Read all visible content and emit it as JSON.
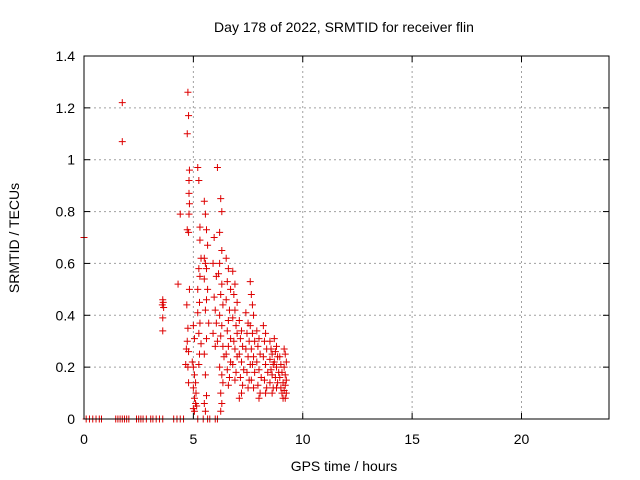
{
  "chart_data": {
    "type": "scatter",
    "title": "Day 178 of 2022, SRMTID for receiver flin",
    "xlabel": "GPS time / hours",
    "ylabel": "SRMTID / TECUs",
    "xlim": [
      0,
      24
    ],
    "ylim": [
      0,
      1.4
    ],
    "xticks": [
      0,
      5,
      10,
      15,
      20
    ],
    "yticks": [
      0,
      0.2,
      0.4,
      0.6,
      0.8,
      1,
      1.2,
      1.4
    ],
    "xtick_labels": [
      "0",
      "5",
      "10",
      "15",
      "20"
    ],
    "ytick_labels": [
      "0",
      "0.2",
      "0.4",
      "0.6",
      "0.8",
      "1",
      "1.2",
      "1.4"
    ],
    "grid": true,
    "marker": "+",
    "color": "#dd0000",
    "series": [
      {
        "name": "SRMTID",
        "points": [
          [
            0.0,
            0.7
          ],
          [
            0.1,
            0.0
          ],
          [
            0.25,
            0.0
          ],
          [
            0.4,
            0.0
          ],
          [
            0.55,
            0.0
          ],
          [
            0.7,
            0.0
          ],
          [
            0.8,
            0.0
          ],
          [
            1.45,
            0.0
          ],
          [
            1.55,
            0.0
          ],
          [
            1.65,
            0.0
          ],
          [
            1.75,
            0.0
          ],
          [
            1.85,
            0.0
          ],
          [
            1.95,
            0.0
          ],
          [
            2.05,
            0.0
          ],
          [
            2.4,
            0.0
          ],
          [
            2.5,
            0.0
          ],
          [
            2.6,
            0.0
          ],
          [
            2.7,
            0.0
          ],
          [
            2.85,
            0.0
          ],
          [
            3.05,
            0.0
          ],
          [
            3.15,
            0.0
          ],
          [
            3.3,
            0.0
          ],
          [
            3.45,
            0.0
          ],
          [
            3.6,
            0.0
          ],
          [
            4.1,
            0.0
          ],
          [
            4.25,
            0.0
          ],
          [
            4.4,
            0.0
          ],
          [
            4.55,
            0.0
          ],
          [
            5.2,
            0.0
          ],
          [
            5.45,
            0.0
          ],
          [
            5.65,
            0.0
          ],
          [
            5.75,
            0.0
          ],
          [
            6.0,
            0.0
          ],
          [
            6.1,
            0.0
          ],
          [
            1.75,
            1.22
          ],
          [
            1.75,
            1.07
          ],
          [
            3.6,
            0.46
          ],
          [
            3.62,
            0.45
          ],
          [
            3.58,
            0.44
          ],
          [
            3.64,
            0.43
          ],
          [
            3.6,
            0.39
          ],
          [
            3.6,
            0.34
          ],
          [
            4.3,
            0.52
          ],
          [
            4.4,
            0.79
          ],
          [
            4.75,
            1.26
          ],
          [
            4.78,
            1.17
          ],
          [
            4.72,
            1.1
          ],
          [
            4.82,
            0.96
          ],
          [
            4.8,
            0.92
          ],
          [
            4.8,
            0.87
          ],
          [
            4.82,
            0.83
          ],
          [
            4.8,
            0.79
          ],
          [
            4.78,
            0.72
          ],
          [
            4.72,
            0.73
          ],
          [
            4.82,
            0.5
          ],
          [
            4.7,
            0.44
          ],
          [
            4.75,
            0.35
          ],
          [
            4.72,
            0.3
          ],
          [
            4.68,
            0.27
          ],
          [
            4.78,
            0.26
          ],
          [
            4.65,
            0.21
          ],
          [
            4.75,
            0.2
          ],
          [
            4.78,
            0.14
          ],
          [
            5.0,
            0.36
          ],
          [
            5.05,
            0.31
          ],
          [
            4.95,
            0.22
          ],
          [
            5.0,
            0.2
          ],
          [
            5.05,
            0.17
          ],
          [
            5.1,
            0.14
          ],
          [
            5.0,
            0.12
          ],
          [
            5.12,
            0.1
          ],
          [
            5.05,
            0.08
          ],
          [
            5.1,
            0.06
          ],
          [
            5.15,
            0.05
          ],
          [
            5.0,
            0.04
          ],
          [
            5.05,
            0.03
          ],
          [
            5.2,
            0.97
          ],
          [
            5.25,
            0.92
          ],
          [
            5.3,
            0.74
          ],
          [
            5.3,
            0.69
          ],
          [
            5.35,
            0.62
          ],
          [
            5.25,
            0.58
          ],
          [
            5.3,
            0.55
          ],
          [
            5.2,
            0.5
          ],
          [
            5.28,
            0.45
          ],
          [
            5.2,
            0.41
          ],
          [
            5.3,
            0.37
          ],
          [
            5.25,
            0.33
          ],
          [
            5.35,
            0.29
          ],
          [
            5.28,
            0.25
          ],
          [
            5.25,
            0.21
          ],
          [
            5.5,
            0.84
          ],
          [
            5.55,
            0.79
          ],
          [
            5.6,
            0.73
          ],
          [
            5.65,
            0.67
          ],
          [
            5.5,
            0.62
          ],
          [
            5.55,
            0.6
          ],
          [
            5.6,
            0.58
          ],
          [
            5.5,
            0.54
          ],
          [
            5.65,
            0.5
          ],
          [
            5.6,
            0.46
          ],
          [
            5.55,
            0.42
          ],
          [
            5.7,
            0.37
          ],
          [
            5.6,
            0.31
          ],
          [
            5.5,
            0.25
          ],
          [
            5.55,
            0.17
          ],
          [
            5.6,
            0.09
          ],
          [
            5.5,
            0.06
          ],
          [
            5.55,
            0.03
          ],
          [
            6.1,
            0.97
          ],
          [
            5.95,
            0.7
          ],
          [
            5.9,
            0.6
          ],
          [
            6.05,
            0.55
          ],
          [
            5.95,
            0.47
          ],
          [
            6.0,
            0.42
          ],
          [
            6.05,
            0.37
          ],
          [
            5.9,
            0.33
          ],
          [
            6.1,
            0.3
          ],
          [
            6.0,
            0.28
          ],
          [
            6.25,
            0.85
          ],
          [
            6.3,
            0.8
          ],
          [
            6.2,
            0.72
          ],
          [
            6.3,
            0.65
          ],
          [
            6.2,
            0.6
          ],
          [
            6.15,
            0.56
          ],
          [
            6.3,
            0.52
          ],
          [
            6.25,
            0.48
          ],
          [
            6.35,
            0.44
          ],
          [
            6.2,
            0.4
          ],
          [
            6.3,
            0.36
          ],
          [
            6.25,
            0.32
          ],
          [
            6.35,
            0.28
          ],
          [
            6.4,
            0.24
          ],
          [
            6.2,
            0.2
          ],
          [
            6.3,
            0.17
          ],
          [
            6.35,
            0.14
          ],
          [
            6.25,
            0.1
          ],
          [
            6.3,
            0.06
          ],
          [
            6.25,
            0.03
          ],
          [
            6.5,
            0.62
          ],
          [
            6.6,
            0.58
          ],
          [
            6.55,
            0.53
          ],
          [
            6.7,
            0.5
          ],
          [
            6.5,
            0.46
          ],
          [
            6.65,
            0.42
          ],
          [
            6.6,
            0.38
          ],
          [
            6.55,
            0.34
          ],
          [
            6.7,
            0.31
          ],
          [
            6.6,
            0.28
          ],
          [
            6.5,
            0.25
          ],
          [
            6.7,
            0.22
          ],
          [
            6.55,
            0.19
          ],
          [
            6.65,
            0.16
          ],
          [
            6.6,
            0.13
          ],
          [
            6.8,
            0.57
          ],
          [
            6.9,
            0.52
          ],
          [
            6.85,
            0.48
          ],
          [
            7.0,
            0.45
          ],
          [
            6.9,
            0.42
          ],
          [
            6.8,
            0.39
          ],
          [
            6.95,
            0.36
          ],
          [
            7.0,
            0.33
          ],
          [
            6.85,
            0.3
          ],
          [
            6.9,
            0.27
          ],
          [
            7.0,
            0.24
          ],
          [
            6.8,
            0.21
          ],
          [
            6.95,
            0.18
          ],
          [
            6.9,
            0.15
          ],
          [
            7.1,
            0.38
          ],
          [
            7.2,
            0.34
          ],
          [
            7.15,
            0.31
          ],
          [
            7.25,
            0.28
          ],
          [
            7.1,
            0.25
          ],
          [
            7.2,
            0.22
          ],
          [
            7.3,
            0.19
          ],
          [
            7.15,
            0.16
          ],
          [
            7.25,
            0.13
          ],
          [
            7.2,
            0.1
          ],
          [
            7.1,
            0.08
          ],
          [
            7.4,
            0.41
          ],
          [
            7.5,
            0.37
          ],
          [
            7.45,
            0.33
          ],
          [
            7.55,
            0.3
          ],
          [
            7.4,
            0.27
          ],
          [
            7.5,
            0.24
          ],
          [
            7.6,
            0.21
          ],
          [
            7.45,
            0.18
          ],
          [
            7.55,
            0.15
          ],
          [
            7.5,
            0.12
          ],
          [
            7.6,
            0.53
          ],
          [
            7.65,
            0.48
          ],
          [
            7.7,
            0.44
          ],
          [
            7.75,
            0.4
          ],
          [
            7.6,
            0.36
          ],
          [
            7.7,
            0.33
          ],
          [
            7.8,
            0.3
          ],
          [
            7.65,
            0.27
          ],
          [
            7.75,
            0.24
          ],
          [
            7.7,
            0.21
          ],
          [
            7.8,
            0.18
          ],
          [
            7.65,
            0.15
          ],
          [
            7.75,
            0.12
          ],
          [
            7.9,
            0.34
          ],
          [
            8.0,
            0.31
          ],
          [
            7.95,
            0.28
          ],
          [
            8.05,
            0.25
          ],
          [
            7.9,
            0.22
          ],
          [
            8.0,
            0.19
          ],
          [
            8.1,
            0.16
          ],
          [
            7.95,
            0.13
          ],
          [
            8.05,
            0.1
          ],
          [
            8.0,
            0.08
          ],
          [
            8.2,
            0.36
          ],
          [
            8.3,
            0.33
          ],
          [
            8.25,
            0.3
          ],
          [
            8.35,
            0.27
          ],
          [
            8.2,
            0.24
          ],
          [
            8.3,
            0.21
          ],
          [
            8.4,
            0.18
          ],
          [
            8.25,
            0.15
          ],
          [
            8.35,
            0.12
          ],
          [
            8.3,
            0.1
          ],
          [
            8.5,
            0.3
          ],
          [
            8.55,
            0.27
          ],
          [
            8.6,
            0.25
          ],
          [
            8.5,
            0.23
          ],
          [
            8.65,
            0.21
          ],
          [
            8.55,
            0.19
          ],
          [
            8.6,
            0.17
          ],
          [
            8.5,
            0.14
          ],
          [
            8.65,
            0.12
          ],
          [
            8.6,
            0.1
          ],
          [
            8.7,
            0.31
          ],
          [
            8.8,
            0.28
          ],
          [
            8.75,
            0.26
          ],
          [
            8.85,
            0.24
          ],
          [
            8.7,
            0.22
          ],
          [
            8.8,
            0.2
          ],
          [
            8.9,
            0.18
          ],
          [
            8.75,
            0.16
          ],
          [
            8.85,
            0.14
          ],
          [
            8.8,
            0.12
          ],
          [
            8.95,
            0.24
          ],
          [
            9.0,
            0.21
          ],
          [
            9.05,
            0.18
          ],
          [
            8.95,
            0.16
          ],
          [
            9.1,
            0.14
          ],
          [
            9.0,
            0.12
          ],
          [
            9.05,
            0.1
          ],
          [
            9.1,
            0.08
          ],
          [
            9.15,
            0.27
          ],
          [
            9.2,
            0.25
          ],
          [
            9.25,
            0.22
          ],
          [
            9.15,
            0.2
          ],
          [
            9.2,
            0.17
          ],
          [
            9.25,
            0.15
          ],
          [
            9.2,
            0.13
          ],
          [
            9.15,
            0.11
          ],
          [
            9.25,
            0.1
          ],
          [
            9.2,
            0.08
          ]
        ]
      }
    ]
  }
}
